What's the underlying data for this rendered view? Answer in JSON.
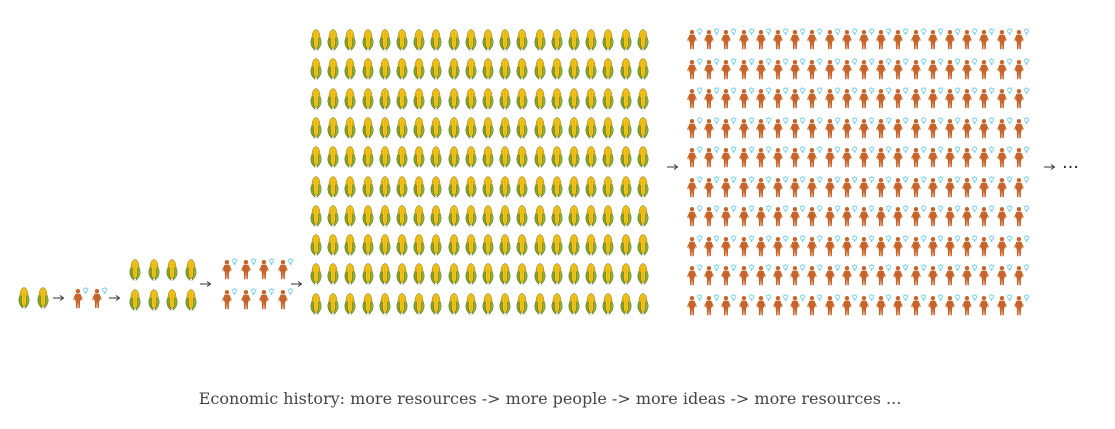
{
  "diagram": {
    "stages": [
      {
        "name": "resources",
        "kind": "corn",
        "cols": 2,
        "rows": 1
      },
      {
        "name": "people",
        "kind": "people",
        "cols": 2,
        "rows": 1
      },
      {
        "name": "resources",
        "kind": "corn",
        "cols": 4,
        "rows": 2
      },
      {
        "name": "people",
        "kind": "people",
        "cols": 4,
        "rows": 2
      },
      {
        "name": "resources",
        "kind": "corn",
        "cols": 20,
        "rows": 10
      },
      {
        "name": "people",
        "kind": "people",
        "cols": 20,
        "rows": 10
      }
    ],
    "continuation": "…",
    "icons": {
      "corn": "corn-icon",
      "person": "person-icon",
      "idea": "lightbulb-icon"
    },
    "colors": {
      "corn_kernels": "#f2c418",
      "corn_husk": "#7fa32a",
      "person": "#c7642a",
      "idea": "#5ec8ea",
      "arrow": "#333333",
      "caption": "#444444"
    }
  },
  "caption": "Economic history: more resources -> more people -> more ideas -> more resources ..."
}
